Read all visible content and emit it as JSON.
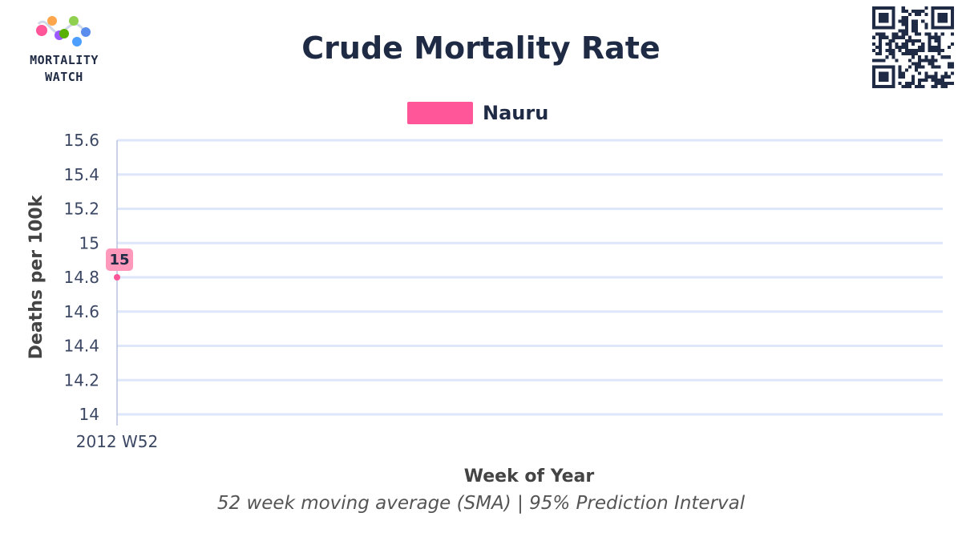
{
  "brand": {
    "line1": "MORTALITY",
    "line2": "WATCH"
  },
  "chart_data": {
    "type": "line",
    "title": "Crude Mortality Rate",
    "subtitle": "52 week moving average (SMA) | 95% Prediction Interval",
    "xlabel": "Week of Year",
    "ylabel": "Deaths per 100k",
    "categories": [
      "2012 W52"
    ],
    "series": [
      {
        "name": "Nauru",
        "color": "#ff5599",
        "values": [
          14.8
        ],
        "data_labels": [
          "15"
        ]
      }
    ],
    "yticks": [
      "15.6",
      "15.4",
      "15.2",
      "15",
      "14.8",
      "14.6",
      "14.4",
      "14.2",
      "14"
    ],
    "ylim": [
      14,
      15.6
    ],
    "grid": true,
    "legend_position": "top-center"
  },
  "colors": {
    "title": "#1f2a44",
    "grid": "#dde6fb",
    "series": "#ff5599"
  }
}
